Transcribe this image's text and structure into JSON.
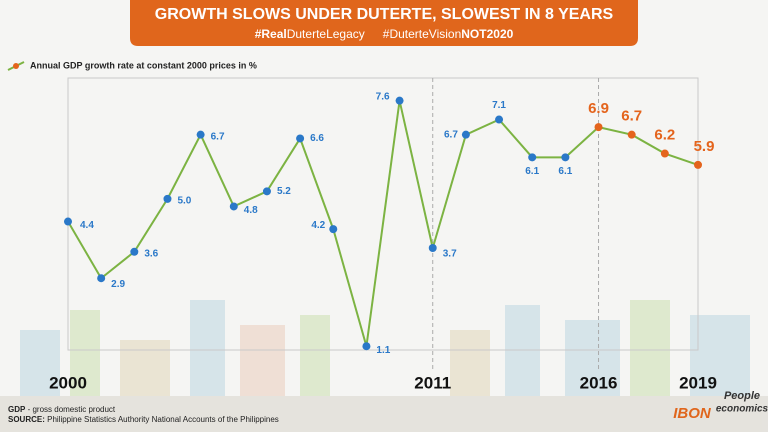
{
  "chart_data": {
    "type": "line",
    "title": "GROWTH SLOWS UNDER DUTERTE, SLOWEST IN 8 YEARS",
    "hashtags": [
      [
        "#Real",
        "DuterteLegacy"
      ],
      [
        "#DuterteVision",
        "NOT2020"
      ]
    ],
    "categories": [
      "2000",
      null,
      null,
      null,
      null,
      null,
      null,
      null,
      null,
      null,
      null,
      "2011",
      null,
      null,
      null,
      null,
      "2016",
      null,
      null,
      "2019"
    ],
    "series": [
      {
        "name": "Annual GDP growth rate at constant 2000 prices in %",
        "color": "#7cb342",
        "marker_colors": [
          "#2a78c8",
          "#2a78c8",
          "#2a78c8",
          "#2a78c8",
          "#2a78c8",
          "#2a78c8",
          "#2a78c8",
          "#2a78c8",
          "#2a78c8",
          "#2a78c8",
          "#2a78c8",
          "#2a78c8",
          "#2a78c8",
          "#2a78c8",
          "#2a78c8",
          "#2a78c8",
          "#e4641c",
          "#e4641c",
          "#e4641c",
          "#e4641c"
        ],
        "values": [
          4.4,
          2.9,
          3.6,
          5.0,
          6.7,
          4.8,
          5.2,
          6.6,
          4.2,
          1.1,
          7.6,
          3.7,
          6.7,
          7.1,
          6.1,
          6.1,
          6.9,
          6.7,
          6.2,
          5.9
        ],
        "value_labels": [
          "4.4",
          "2.9",
          "3.6",
          "5.0",
          "6.7",
          "4.8",
          "5.2",
          "6.6",
          "4.2",
          "1.1",
          "7.6",
          "3.7",
          "6.7",
          "7.1",
          "6.1",
          "6.1",
          "6.9",
          "6.7",
          "6.2",
          "5.9"
        ]
      }
    ],
    "ylim": [
      1,
      8.2
    ],
    "footnote": [
      "GDP",
      " - gross domestic product"
    ],
    "source": [
      "SOURCE:",
      " Philippine Statistics Authority National Accounts of the Philippines"
    ],
    "logos": [
      "IBON",
      "People",
      "economics"
    ]
  }
}
